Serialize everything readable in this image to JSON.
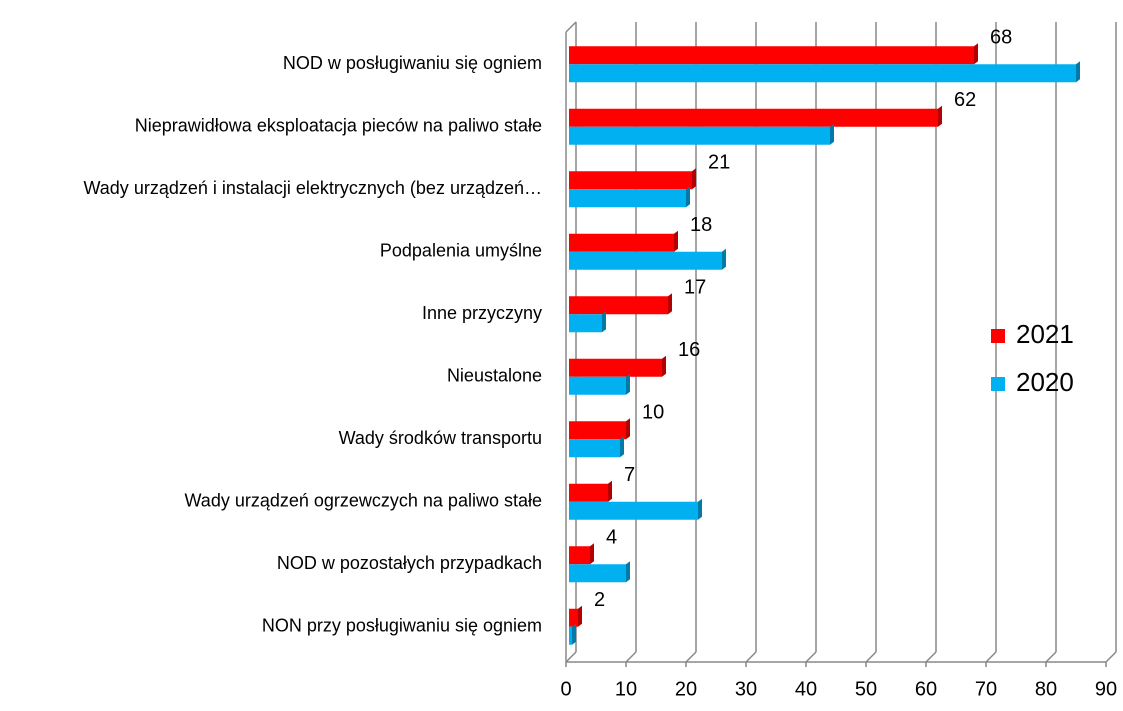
{
  "chart_data": {
    "type": "bar",
    "orientation": "horizontal",
    "categories": [
      "NOD  w posługiwaniu się ogniem",
      "Nieprawidłowa eksploatacja pieców na paliwo stałe",
      "Wady urządzeń i instalacji elektrycznych (bez urządzeń…",
      "Podpalenia umyślne",
      "Inne przyczyny",
      "Nieustalone",
      "Wady środków transportu",
      "Wady urządzeń ogrzewczych na paliwo stałe",
      "NOD w pozostałych przypadkach",
      "NON przy posługiwaniu się ogniem"
    ],
    "series": [
      {
        "name": "2021",
        "color": "#ff0000",
        "values": [
          68,
          62,
          21,
          18,
          17,
          16,
          10,
          7,
          4,
          2
        ],
        "labels": true
      },
      {
        "name": "2020",
        "color": "#00b0f0",
        "values": [
          85,
          44,
          20,
          26,
          6,
          10,
          9,
          22,
          10,
          1
        ],
        "labels": false
      }
    ],
    "xlim": [
      0,
      90
    ],
    "xticks": [
      0,
      10,
      20,
      30,
      40,
      50,
      60,
      70,
      80,
      90
    ],
    "grid": true,
    "legend": "right"
  }
}
